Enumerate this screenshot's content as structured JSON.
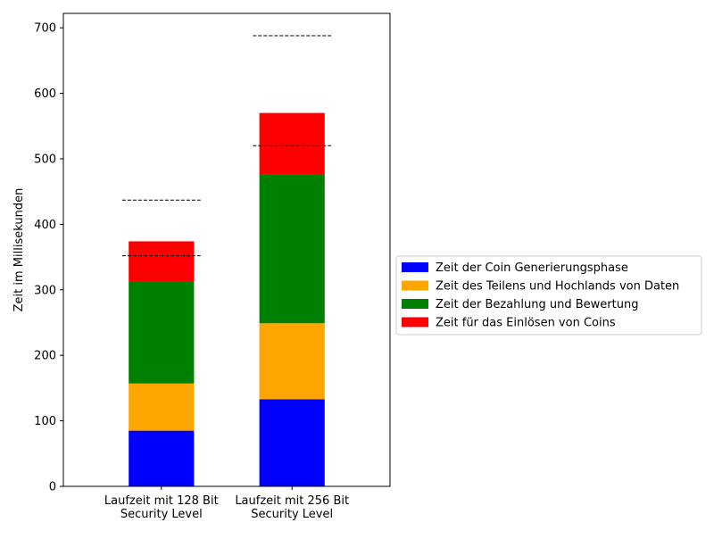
{
  "chart_data": {
    "type": "bar",
    "stacked": true,
    "categories": [
      "Laufzeit mit 128 Bit\nSecurity Level",
      "Laufzeit mit 256 Bit\nSecurity Level"
    ],
    "series": [
      {
        "name": "Zeit der Coin Generierungsphase",
        "color": "#0000ff",
        "values": [
          85,
          133
        ]
      },
      {
        "name": "Zeit des Teilens und Hochlands von Daten",
        "color": "#ffa500",
        "values": [
          72,
          116
        ]
      },
      {
        "name": "Zeit der Bezahlung und Bewertung",
        "color": "#008000",
        "values": [
          155,
          227
        ]
      },
      {
        "name": "Zeit für das Einlösen von Coins",
        "color": "#ff0000",
        "values": [
          62,
          94
        ]
      }
    ],
    "reference_lines": [
      {
        "category_index": 0,
        "values": [
          352,
          437
        ]
      },
      {
        "category_index": 1,
        "values": [
          520,
          688
        ]
      }
    ],
    "ylabel": "Zeit im Millisekunden",
    "xlabel": "",
    "ylim": [
      0,
      722
    ],
    "yticks": [
      0,
      100,
      200,
      300,
      400,
      500,
      600,
      700
    ],
    "grid": false,
    "legend_placement": "outside-right"
  }
}
